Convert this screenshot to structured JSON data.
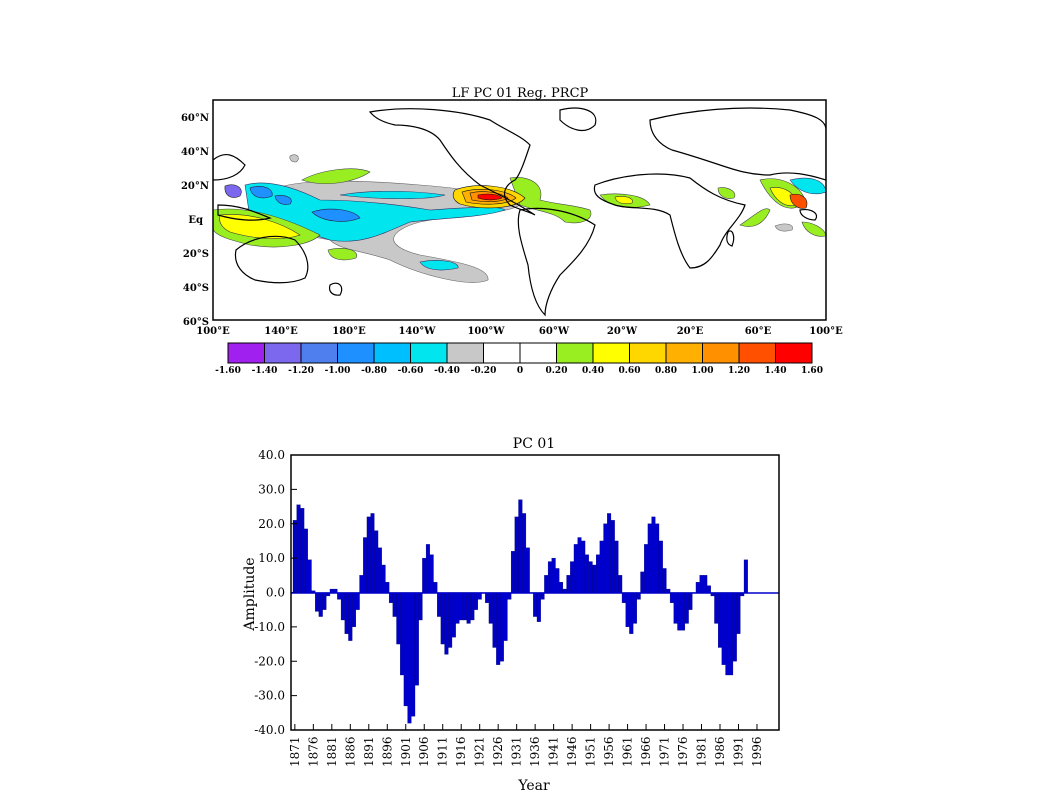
{
  "map": {
    "title": "LF PC 01 Reg. PRCP",
    "lat_labels": [
      "60°N",
      "40°N",
      "20°N",
      "Eq",
      "20°S",
      "40°S",
      "60°S"
    ],
    "lon_labels": [
      "100°E",
      "140°E",
      "180°E",
      "140°W",
      "100°W",
      "60°W",
      "20°W",
      "20°E",
      "60°E",
      "100°E"
    ],
    "colorbar": {
      "labels": [
        "-1.60",
        "-1.40",
        "-1.20",
        "-1.00",
        "-0.80",
        "-0.60",
        "-0.40",
        "-0.20",
        "0",
        "0.20",
        "0.40",
        "0.60",
        "0.80",
        "1.00",
        "1.20",
        "1.40",
        "1.60"
      ],
      "colors": [
        "#a020f0",
        "#7b68ee",
        "#4f7fef",
        "#1e90ff",
        "#00bfff",
        "#00e5ee",
        "#c8c8c8",
        "#ffffff",
        "#ffffff",
        "#99ee22",
        "#ffff00",
        "#ffd700",
        "#ffb000",
        "#ff9000",
        "#ff5000",
        "#ff0000"
      ]
    }
  },
  "chart_data": {
    "type": "bar",
    "title": "PC 01",
    "xlabel": "Year",
    "ylabel": "Amplitude",
    "ylim": [
      -40,
      40
    ],
    "yticks": [
      "40.0",
      "30.0",
      "20.0",
      "10.0",
      "0.0",
      "-10.0",
      "-20.0",
      "-30.0",
      "-40.0"
    ],
    "xticks": [
      "1871",
      "1876",
      "1881",
      "1886",
      "1891",
      "1896",
      "1901",
      "1906",
      "1911",
      "1916",
      "1921",
      "1926",
      "1931",
      "1936",
      "1941",
      "1946",
      "1951",
      "1956",
      "1961",
      "1966",
      "1971",
      "1976",
      "1981",
      "1986",
      "1991",
      "1996"
    ],
    "start_year": 1871,
    "bar_color": "#0000cc",
    "values": [
      21,
      25.5,
      24.5,
      18.5,
      9.5,
      0.5,
      -5.5,
      -7,
      -5,
      -1,
      1,
      1,
      -2,
      -8,
      -12,
      -14,
      -10,
      -5,
      5,
      16,
      22,
      23,
      18,
      13,
      8,
      3,
      -3,
      -7,
      -15,
      -24,
      -33,
      -38,
      -36,
      -27,
      -8,
      10,
      14,
      11,
      3,
      -7,
      -15,
      -18,
      -16,
      -13,
      -9,
      -8,
      -8,
      -9,
      -8,
      -5,
      -2,
      0,
      -3,
      -9,
      -16,
      -21,
      -20,
      -14,
      -2,
      12,
      22,
      27,
      23,
      13,
      0,
      -7,
      -8.5,
      -2,
      5,
      9,
      10,
      7,
      3,
      1,
      5,
      9,
      14,
      16,
      15,
      11,
      9,
      8,
      11,
      15,
      20,
      23,
      21,
      15,
      5,
      -3,
      -10,
      -12,
      -9,
      -2,
      6,
      14,
      20,
      22,
      20,
      15,
      7,
      1,
      -3,
      -9,
      -11,
      -11,
      -9,
      -5,
      0,
      3,
      5,
      5,
      2,
      -1,
      -9,
      -16,
      -21,
      -24,
      -24,
      -20,
      -12,
      -1,
      9.5
    ]
  }
}
